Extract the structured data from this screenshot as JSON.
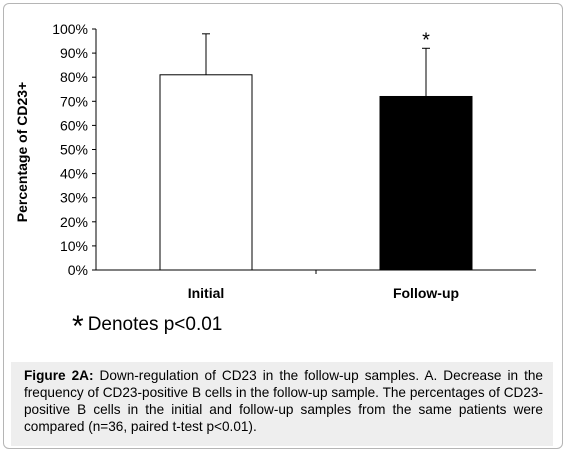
{
  "chart_data": {
    "type": "bar",
    "title": "",
    "xlabel": "",
    "ylabel": "Percentage of CD23+",
    "categories": [
      "Initial",
      "Follow-up"
    ],
    "values": [
      81,
      72
    ],
    "error_plus": [
      17,
      20
    ],
    "ylim": [
      0,
      100
    ],
    "yticks": [
      "0%",
      "10%",
      "20%",
      "30%",
      "40%",
      "50%",
      "60%",
      "70%",
      "80%",
      "90%",
      "100%"
    ],
    "bar_colors": [
      "#ffffff",
      "#000000"
    ],
    "bar_edge": "#000000",
    "significance_marker": "*",
    "significance_bar_index": 1,
    "grid": false,
    "legend": "none"
  },
  "note": {
    "symbol": "*",
    "text": "Denotes p<0.01"
  },
  "caption": {
    "label": "Figure 2A:",
    "text": " Down-regulation of CD23 in the follow-up samples. A. Decrease in the frequency of CD23-positive B cells in the follow-up sample. The percentages of CD23-positive B cells in the initial and follow-up samples from the same patients were compared (n=36, paired t-test p<0.01)."
  }
}
